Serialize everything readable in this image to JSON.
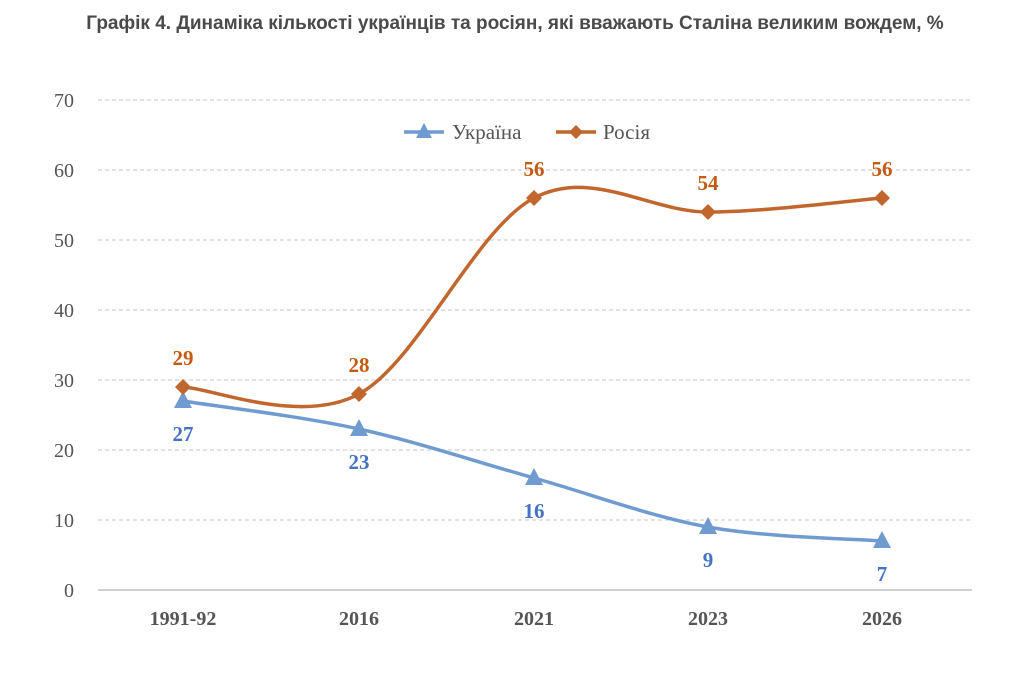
{
  "chart_data": {
    "type": "line",
    "title": "Графік 4. Динаміка кількості українців та росіян, які вважають Сталіна великим вождем, %",
    "categories": [
      "1991-92",
      "2016",
      "2021",
      "2023",
      "2026"
    ],
    "series": [
      {
        "name": "Україна",
        "values": [
          27,
          23,
          16,
          9,
          7
        ],
        "color": "#6f9bd1",
        "marker": "triangle"
      },
      {
        "name": "Росія",
        "values": [
          29,
          28,
          56,
          54,
          56
        ],
        "color": "#c1662c",
        "marker": "diamond"
      }
    ],
    "ylim": [
      0,
      70
    ],
    "yticks": [
      0,
      10,
      20,
      30,
      40,
      50,
      60,
      70
    ],
    "grid": true,
    "legend": "top-center",
    "data_label_colors": {
      "Україна": "#4472c4",
      "Росія": "#c55a11"
    }
  }
}
